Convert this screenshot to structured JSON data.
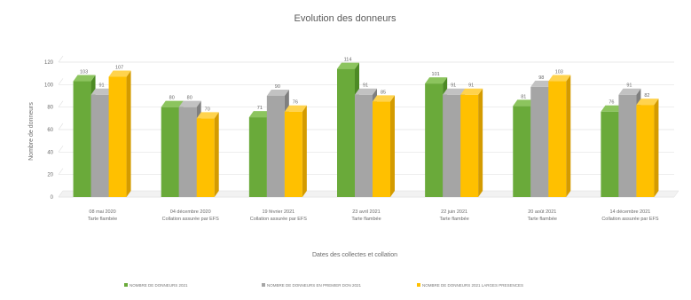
{
  "chart_data": {
    "type": "bar",
    "title": "Evolution des donneurs",
    "ylabel": "Nombre de donneurs",
    "xlabel": "Dates des collectes et collation",
    "ylim": [
      0,
      120
    ],
    "yticks": [
      0,
      20,
      40,
      60,
      80,
      100,
      120
    ],
    "grid": true,
    "legend_position": "bottom",
    "categories": [
      [
        "08 mai 2020",
        "Tarte flambée"
      ],
      [
        "04 décembre 2020",
        "Collation assurée par EFS"
      ],
      [
        "19 février 2021",
        "Collation assurée par EFS"
      ],
      [
        "23 avril 2021",
        "Tarte flambée"
      ],
      [
        "22 juin 2021",
        "Tarte flambée"
      ],
      [
        "20 août 2021",
        "Tarte flambée"
      ],
      [
        "14 décembre 2021",
        "Collation assurée par EFS"
      ]
    ],
    "series": [
      {
        "name": "NOMBRE DE DONNEURS 2021",
        "color": "#6aaa3a",
        "side": "#4d8a25",
        "top": "#8cc45e",
        "values": [
          103,
          80,
          71,
          114,
          101,
          81,
          76
        ]
      },
      {
        "name": "NOMBRE DE DONNEURS EN PREMIER DON 2021",
        "color": "#a5a5a5",
        "side": "#7f7f7f",
        "top": "#c2c2c2",
        "values": [
          91,
          80,
          90,
          91,
          91,
          98,
          91
        ]
      },
      {
        "name": "NOMBRE DE DONNEURS 2021 LARGES PRESENCES",
        "color": "#ffc000",
        "side": "#d49b00",
        "top": "#ffd34d",
        "values": [
          107,
          70,
          76,
          85,
          91,
          103,
          82
        ]
      }
    ]
  }
}
